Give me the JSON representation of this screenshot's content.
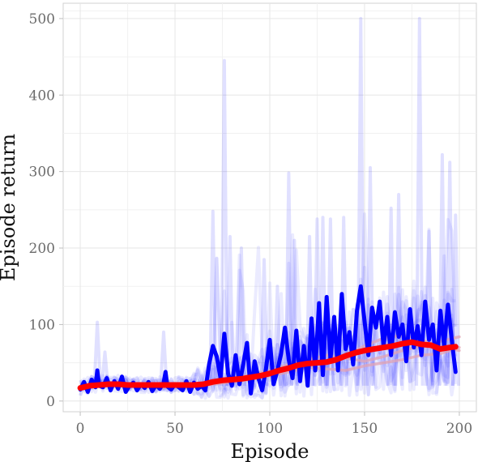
{
  "chart_data": {
    "type": "line",
    "title": "",
    "xlabel": "Episode",
    "ylabel": "Episode return",
    "xlim": [
      -9,
      209
    ],
    "ylim": [
      -14,
      520
    ],
    "grid": true,
    "x_ticks": [
      0,
      50,
      100,
      150,
      200
    ],
    "y_ticks": [
      0,
      100,
      200,
      300,
      400,
      500
    ],
    "colors": {
      "runs": "#0000ff",
      "highlight_run": "#0000ff",
      "smoothed_runs": "#e2a3b3",
      "mean": "#ff0000",
      "grid_major": "#e6e6e6",
      "grid_minor": "#f1f1f1",
      "tick_text": "#6b6b6b",
      "tick_mark": "#bfbfbf"
    },
    "background_runs_description": "multiple faint independent runs",
    "background_runs_peak_points": [
      {
        "x": 9,
        "y": 103
      },
      {
        "x": 13,
        "y": 64
      },
      {
        "x": 44,
        "y": 90
      },
      {
        "x": 70,
        "y": 248
      },
      {
        "x": 76,
        "y": 445
      },
      {
        "x": 79,
        "y": 215
      },
      {
        "x": 85,
        "y": 200
      },
      {
        "x": 97,
        "y": 185
      },
      {
        "x": 104,
        "y": 150
      },
      {
        "x": 110,
        "y": 298
      },
      {
        "x": 113,
        "y": 210
      },
      {
        "x": 121,
        "y": 215
      },
      {
        "x": 125,
        "y": 238
      },
      {
        "x": 128,
        "y": 240
      },
      {
        "x": 132,
        "y": 238
      },
      {
        "x": 139,
        "y": 240
      },
      {
        "x": 148,
        "y": 500
      },
      {
        "x": 153,
        "y": 305
      },
      {
        "x": 164,
        "y": 252
      },
      {
        "x": 168,
        "y": 270
      },
      {
        "x": 179,
        "y": 500
      },
      {
        "x": 184,
        "y": 222
      },
      {
        "x": 191,
        "y": 322
      },
      {
        "x": 195,
        "y": 312
      },
      {
        "x": 198,
        "y": 243
      }
    ],
    "series": [
      {
        "role": "highlighted run",
        "x": [
          0,
          2,
          4,
          6,
          8,
          9,
          10,
          12,
          14,
          16,
          18,
          20,
          22,
          24,
          26,
          28,
          30,
          32,
          34,
          36,
          38,
          40,
          42,
          44,
          45,
          46,
          48,
          50,
          52,
          54,
          56,
          58,
          60,
          62,
          64,
          66,
          68,
          70,
          72,
          74,
          76,
          78,
          80,
          82,
          84,
          86,
          88,
          90,
          92,
          94,
          96,
          98,
          100,
          102,
          104,
          106,
          108,
          110,
          112,
          114,
          116,
          118,
          120,
          122,
          124,
          126,
          128,
          130,
          132,
          134,
          136,
          138,
          140,
          142,
          144,
          146,
          148,
          150,
          152,
          154,
          156,
          158,
          160,
          162,
          164,
          166,
          168,
          170,
          172,
          174,
          176,
          178,
          180,
          182,
          184,
          186,
          188,
          190,
          192,
          194,
          196,
          198
        ],
        "y": [
          15,
          25,
          12,
          28,
          18,
          40,
          20,
          18,
          30,
          14,
          26,
          16,
          32,
          12,
          20,
          24,
          14,
          22,
          17,
          25,
          13,
          21,
          16,
          24,
          38,
          19,
          15,
          22,
          18,
          14,
          26,
          12,
          24,
          16,
          20,
          14,
          48,
          72,
          58,
          30,
          88,
          36,
          20,
          60,
          22,
          48,
          76,
          10,
          52,
          30,
          14,
          42,
          80,
          22,
          40,
          62,
          96,
          54,
          30,
          92,
          26,
          72,
          20,
          108,
          40,
          128,
          34,
          136,
          54,
          110,
          40,
          140,
          68,
          90,
          48,
          118,
          150,
          104,
          60,
          122,
          96,
          130,
          72,
          110,
          60,
          116,
          84,
          100,
          52,
          120,
          70,
          98,
          60,
          130,
          80,
          100,
          40,
          118,
          72,
          126,
          80,
          38
        ]
      },
      {
        "role": "smoothed run A",
        "x": [
          0,
          20,
          40,
          60,
          70,
          80,
          90,
          100,
          110,
          120,
          130,
          140,
          150,
          160,
          170,
          180,
          190,
          200
        ],
        "y": [
          18,
          22,
          20,
          20,
          24,
          26,
          30,
          36,
          42,
          46,
          50,
          60,
          72,
          82,
          86,
          80,
          72,
          66
        ]
      },
      {
        "role": "smoothed run B",
        "x": [
          0,
          20,
          40,
          60,
          70,
          80,
          90,
          100,
          110,
          120,
          130,
          140,
          150,
          160,
          170,
          180,
          190,
          200
        ],
        "y": [
          17,
          21,
          19,
          21,
          26,
          30,
          34,
          40,
          48,
          54,
          60,
          56,
          52,
          58,
          66,
          72,
          78,
          84
        ]
      },
      {
        "role": "smoothed run C",
        "x": [
          0,
          20,
          40,
          60,
          70,
          80,
          90,
          100,
          110,
          120,
          130,
          140,
          150,
          160,
          170,
          180,
          190,
          200
        ],
        "y": [
          19,
          20,
          18,
          19,
          22,
          25,
          28,
          33,
          38,
          44,
          42,
          40,
          46,
          50,
          54,
          60,
          62,
          70
        ]
      },
      {
        "role": "mean (smoothed)",
        "x": [
          0,
          5,
          10,
          15,
          20,
          25,
          30,
          35,
          40,
          45,
          50,
          55,
          60,
          65,
          70,
          75,
          80,
          85,
          90,
          95,
          100,
          105,
          110,
          115,
          120,
          125,
          130,
          135,
          140,
          145,
          150,
          155,
          160,
          165,
          170,
          175,
          180,
          185,
          190,
          195,
          198
        ],
        "y": [
          17,
          20,
          21,
          22,
          22,
          21,
          21,
          21,
          21,
          21,
          21,
          21,
          21,
          22,
          25,
          27,
          28,
          29,
          31,
          33,
          36,
          40,
          43,
          47,
          49,
          50,
          51,
          54,
          59,
          63,
          66,
          68,
          70,
          72,
          75,
          77,
          74,
          73,
          68,
          70,
          71
        ]
      }
    ]
  }
}
